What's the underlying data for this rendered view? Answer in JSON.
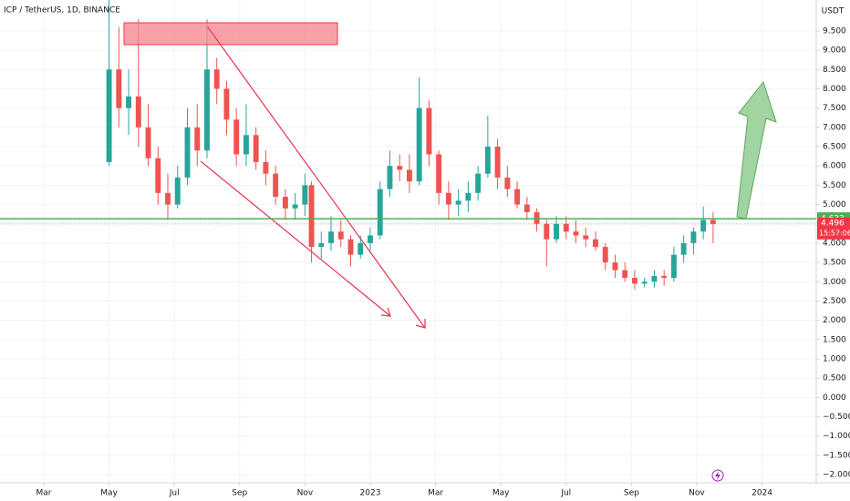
{
  "chart_data": {
    "type": "candlestick",
    "title": "ICP / TetherUS, 1D, BINANCE",
    "currency": "USDT",
    "up_color": "#26a69a",
    "down_color": "#ef5350",
    "grid": true,
    "x": [
      4.0,
      4.3,
      4.6,
      4.9,
      5.2,
      5.5,
      5.8,
      6.1,
      6.4,
      6.7,
      7.0,
      7.3,
      7.6,
      7.9,
      8.2,
      8.5,
      8.8,
      9.1,
      9.4,
      9.7,
      10.0,
      10.2,
      10.5,
      10.8,
      11.1,
      11.4,
      11.7,
      12.0,
      12.3,
      12.6,
      12.9,
      13.2,
      13.5,
      13.8,
      14.1,
      14.4,
      14.7,
      15.0,
      15.3,
      15.6,
      15.9,
      16.2,
      16.5,
      16.8,
      17.1,
      17.4,
      17.7,
      18.0,
      18.3,
      18.6,
      18.9,
      19.2,
      19.5,
      19.8,
      20.1,
      20.4,
      20.7,
      21.0,
      21.3,
      21.6,
      21.9,
      22.2,
      22.5
    ],
    "open": [
      6.1,
      8.5,
      7.5,
      7.8,
      7.0,
      6.2,
      5.3,
      5.0,
      5.7,
      7.0,
      6.4,
      8.5,
      8.0,
      7.2,
      6.3,
      6.8,
      6.1,
      5.8,
      5.2,
      4.9,
      5.0,
      5.5,
      3.9,
      4.0,
      4.3,
      4.1,
      3.7,
      4.0,
      4.2,
      5.4,
      6.0,
      5.9,
      5.6,
      7.5,
      6.3,
      5.3,
      5.0,
      5.1,
      5.3,
      5.8,
      6.5,
      5.7,
      5.4,
      5.0,
      4.8,
      4.5,
      4.1,
      4.5,
      4.3,
      4.2,
      4.1,
      3.9,
      3.5,
      3.3,
      3.1,
      2.95,
      3.0,
      3.15,
      3.1,
      3.7,
      4.0,
      4.3,
      4.6
    ],
    "high": [
      10.3,
      9.6,
      8.5,
      9.8,
      7.6,
      6.5,
      5.8,
      6.0,
      7.5,
      7.6,
      9.8,
      8.8,
      8.2,
      7.5,
      7.6,
      7.0,
      6.4,
      6.0,
      5.4,
      5.3,
      5.8,
      5.6,
      4.3,
      4.7,
      4.6,
      4.2,
      4.2,
      4.4,
      5.6,
      6.4,
      6.3,
      6.3,
      8.3,
      7.7,
      6.4,
      5.6,
      5.4,
      5.6,
      6.0,
      7.3,
      6.7,
      6.0,
      5.6,
      5.2,
      4.9,
      4.6,
      4.7,
      4.7,
      4.6,
      4.4,
      4.3,
      4.0,
      3.7,
      3.5,
      3.3,
      3.1,
      3.3,
      3.3,
      3.9,
      4.2,
      4.4,
      4.95,
      4.8
    ],
    "low": [
      6.0,
      7.0,
      6.8,
      6.5,
      6.0,
      5.0,
      4.6,
      4.9,
      5.5,
      6.0,
      6.2,
      7.6,
      6.8,
      6.0,
      6.0,
      5.9,
      5.5,
      5.0,
      4.6,
      4.6,
      4.7,
      3.5,
      3.6,
      3.8,
      3.9,
      3.4,
      3.6,
      3.8,
      4.1,
      5.2,
      5.6,
      5.3,
      5.5,
      6.0,
      5.0,
      4.6,
      4.7,
      4.8,
      5.1,
      5.7,
      5.4,
      5.2,
      4.9,
      4.6,
      4.3,
      3.4,
      4.0,
      4.1,
      4.0,
      3.9,
      3.8,
      3.3,
      3.1,
      3.0,
      2.8,
      2.85,
      2.85,
      2.9,
      3.0,
      3.5,
      3.7,
      4.1,
      4.0
    ],
    "close": [
      8.5,
      7.5,
      7.8,
      7.0,
      6.2,
      5.3,
      5.0,
      5.7,
      7.0,
      6.4,
      8.5,
      8.0,
      7.2,
      6.3,
      6.8,
      6.1,
      5.8,
      5.2,
      4.9,
      5.0,
      5.5,
      3.9,
      4.0,
      4.3,
      4.1,
      3.7,
      4.0,
      4.2,
      5.4,
      6.0,
      5.9,
      5.6,
      7.5,
      6.3,
      5.3,
      5.0,
      5.1,
      5.3,
      5.8,
      6.5,
      5.7,
      5.4,
      5.0,
      4.8,
      4.5,
      4.1,
      4.5,
      4.3,
      4.2,
      4.1,
      3.9,
      3.5,
      3.3,
      3.1,
      2.95,
      3.0,
      3.15,
      3.1,
      3.7,
      4.0,
      4.3,
      4.6,
      4.496
    ],
    "xlim": [
      0.66,
      25.66
    ],
    "xticks": [
      {
        "value": 2,
        "label": "Mar"
      },
      {
        "value": 4,
        "label": "May"
      },
      {
        "value": 6,
        "label": "Jul"
      },
      {
        "value": 8,
        "label": "Sep"
      },
      {
        "value": 10,
        "label": "Nov"
      },
      {
        "value": 12,
        "label": "2023"
      },
      {
        "value": 14,
        "label": "Mar"
      },
      {
        "value": 16,
        "label": "May"
      },
      {
        "value": 18,
        "label": "Jul"
      },
      {
        "value": 20,
        "label": "Sep"
      },
      {
        "value": 22,
        "label": "Nov"
      },
      {
        "value": 24,
        "label": "2024"
      }
    ],
    "ylim": [
      -2.21,
      10.3
    ],
    "yticks": [
      {
        "value": 9.5,
        "label": "9.500"
      },
      {
        "value": 9,
        "label": "9.000"
      },
      {
        "value": 8.5,
        "label": "8.500"
      },
      {
        "value": 8,
        "label": "8.000"
      },
      {
        "value": 7.5,
        "label": "7.500"
      },
      {
        "value": 7,
        "label": "7.000"
      },
      {
        "value": 6.5,
        "label": "6.500"
      },
      {
        "value": 6,
        "label": "6.000"
      },
      {
        "value": 5.5,
        "label": "5.500"
      },
      {
        "value": 5,
        "label": "5.000"
      },
      {
        "value": 4,
        "label": "4.000"
      },
      {
        "value": 3.5,
        "label": "3.500"
      },
      {
        "value": 3,
        "label": "3.000"
      },
      {
        "value": 2.5,
        "label": "2.500"
      },
      {
        "value": 2,
        "label": "2.000"
      },
      {
        "value": 1.5,
        "label": "1.500"
      },
      {
        "value": 1,
        "label": "1.000"
      },
      {
        "value": 0.5,
        "label": "0.500"
      },
      {
        "value": 0,
        "label": "0.000"
      },
      {
        "value": -0.5,
        "label": "−0.500"
      },
      {
        "value": -1,
        "label": "−1.000"
      },
      {
        "value": -1.5,
        "label": "−1.500"
      },
      {
        "value": -2,
        "label": "−2.000"
      }
    ],
    "level": {
      "value": 4.633,
      "label": "4.633",
      "color": "#4caf50"
    },
    "last_price": {
      "value": 4.496,
      "label": "4.496",
      "color": "#f23645"
    },
    "countdown": "15:57:06"
  }
}
